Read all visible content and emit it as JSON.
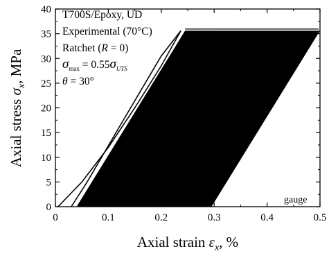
{
  "chart_data": {
    "type": "line",
    "xlabel": {
      "prefix": "Axial strain ",
      "symbol": "ε",
      "sub": "x",
      "suffix": ", %"
    },
    "ylabel": {
      "prefix": "Axial stress ",
      "symbol": "σ",
      "sub": "x",
      "suffix": ", MPa"
    },
    "xlim": [
      0,
      0.5
    ],
    "ylim": [
      0,
      40
    ],
    "x_ticks": [
      0,
      0.1,
      0.2,
      0.3,
      0.4,
      0.5
    ],
    "x_tick_labels": [
      "0",
      "0.1",
      "0.2",
      "0.3",
      "0.4",
      "0.5"
    ],
    "y_ticks": [
      0,
      5,
      10,
      15,
      20,
      25,
      30,
      35,
      40
    ],
    "y_tick_labels": [
      "0",
      "5",
      "10",
      "15",
      "20",
      "25",
      "30",
      "35",
      "40"
    ],
    "annotations": {
      "material": "T700S/Epoxy, UD",
      "condition": "Experimental (70°C)",
      "loading": "Ratchet (R = 0)",
      "loading_parts": {
        "pre": "Ratchet (",
        "var": "R",
        "post": " = 0)"
      },
      "stress_level": {
        "sym": "σ",
        "sub": "max",
        "eq": " = 0.55",
        "sym2": "σ",
        "sub2": "UTS"
      },
      "angle": {
        "sym": "θ",
        "eq": " = 30°"
      },
      "corner": "gauge"
    },
    "sigma_max": 35.6,
    "ratchet_cycles": {
      "first_cycle_loading": [
        [
          0.005,
          0
        ],
        [
          0.05,
          5
        ],
        [
          0.1,
          12
        ],
        [
          0.15,
          20
        ],
        [
          0.2,
          28.5
        ],
        [
          0.237,
          35.6
        ]
      ],
      "first_cycle_unloading": [
        [
          0.237,
          35.6
        ],
        [
          0.2,
          30.5
        ],
        [
          0.12,
          16
        ],
        [
          0.06,
          5
        ],
        [
          0.03,
          0
        ]
      ],
      "band_lower_left_start": [
        0.04,
        0
      ],
      "band_upper_left_at_max": [
        0.245,
        35.6
      ],
      "band_upper_right_at_max": [
        0.5,
        35.6
      ],
      "band_lower_right_start": [
        0.295,
        0
      ]
    }
  },
  "colors": {
    "ink": "#000000",
    "background": "#ffffff"
  }
}
